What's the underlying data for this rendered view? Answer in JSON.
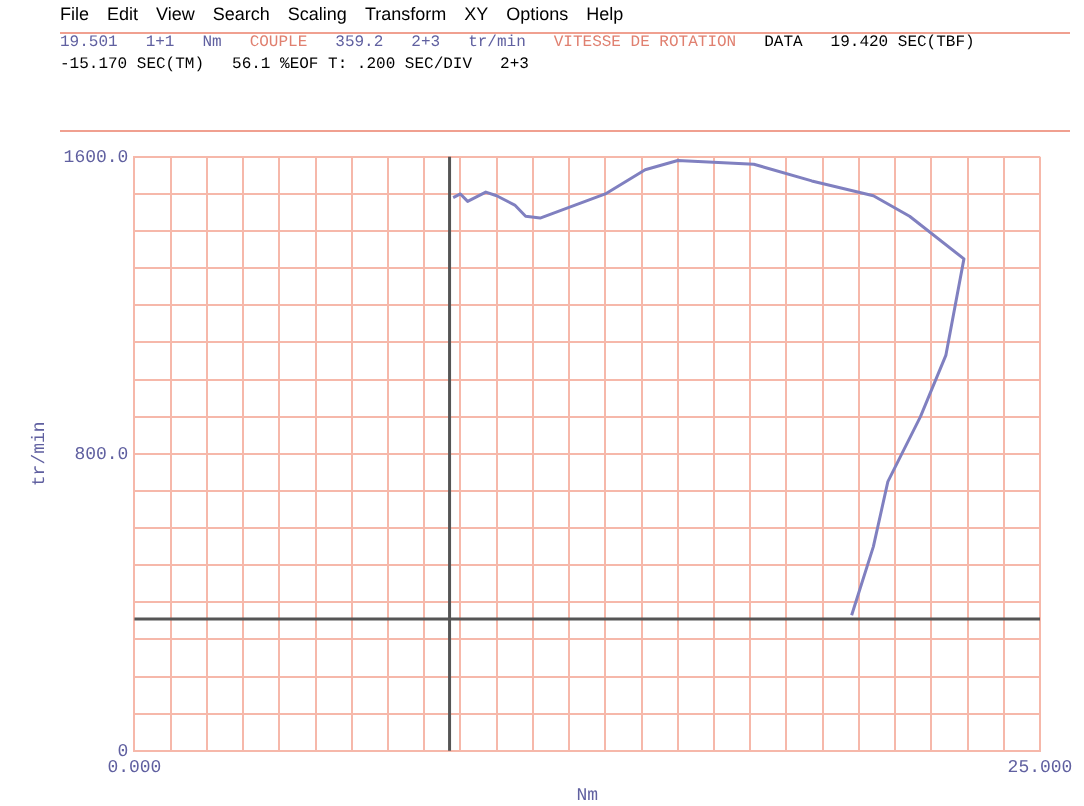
{
  "chart_data": {
    "type": "line",
    "ylabel": "tr/min",
    "xlabel": "Nm",
    "annotations": [
      "File",
      "Edit",
      "View",
      "Search",
      "Scaling",
      "Transform",
      "XY",
      "Options",
      "Help",
      "19.501",
      "1+1",
      "Nm",
      "COUPLE",
      "359.2",
      "2+3",
      "tr/min",
      "VITESSE DE ROTATION",
      "DATA",
      "19.420 SEC(TBF)",
      "-15.170 SEC(TM)",
      "56.1 %EOF T: .200 SEC/DIV",
      "2+3"
    ],
    "series": [
      {
        "color": "#8080c0",
        "x": [
          8.8,
          9.0,
          9.2,
          9.7,
          10.0,
          10.5,
          10.8,
          11.2,
          13.0,
          14.1,
          15.0,
          17.1,
          18.7,
          20.4,
          21.4,
          22.9,
          22.4,
          21.7,
          20.8,
          20.4,
          19.8
        ],
        "values": [
          1490,
          1500,
          1480,
          1505,
          1495,
          1470,
          1440,
          1435,
          1500,
          1565,
          1590,
          1580,
          1535,
          1495,
          1440,
          1325,
          1065,
          900,
          725,
          550,
          365
        ]
      }
    ],
    "xlim": [
      0,
      25
    ],
    "ylim": [
      0,
      1600
    ],
    "xticks": [
      {
        "value": 0,
        "label": "0.000"
      },
      {
        "value": 1,
        "label": null
      },
      {
        "value": 2,
        "label": null
      },
      {
        "value": 3,
        "label": null
      },
      {
        "value": 4,
        "label": null
      },
      {
        "value": 5,
        "label": null
      },
      {
        "value": 6,
        "label": null
      },
      {
        "value": 7,
        "label": null
      },
      {
        "value": 8,
        "label": null
      },
      {
        "value": 9,
        "label": null
      },
      {
        "value": 10,
        "label": null
      },
      {
        "value": 11,
        "label": null
      },
      {
        "value": 12,
        "label": null
      },
      {
        "value": 13,
        "label": null
      },
      {
        "value": 14,
        "label": null
      },
      {
        "value": 15,
        "label": null
      },
      {
        "value": 16,
        "label": null
      },
      {
        "value": 17,
        "label": null
      },
      {
        "value": 18,
        "label": null
      },
      {
        "value": 19,
        "label": null
      },
      {
        "value": 20,
        "label": null
      },
      {
        "value": 21,
        "label": null
      },
      {
        "value": 22,
        "label": null
      },
      {
        "value": 23,
        "label": null
      },
      {
        "value": 24,
        "label": null
      },
      {
        "value": 25,
        "label": "25.000"
      }
    ],
    "yticks": [
      0,
      {
        "value": 100,
        "label": null
      },
      {
        "value": 200,
        "label": null
      },
      {
        "value": 300,
        "label": null
      },
      {
        "value": 400,
        "label": null
      },
      {
        "value": 500,
        "label": null
      },
      {
        "value": 600,
        "label": null
      },
      {
        "value": 700,
        "label": null
      },
      {
        "value": 800,
        "label": "800.0"
      },
      {
        "value": 900,
        "label": null
      },
      {
        "value": 1000,
        "label": null
      },
      {
        "value": 1100,
        "label": null
      },
      {
        "value": 1200,
        "label": null
      },
      {
        "value": 1300,
        "label": null
      },
      {
        "value": 1400,
        "label": null
      },
      {
        "value": 1500,
        "label": null
      },
      {
        "value": 1600,
        "label": "1600.0"
      }
    ],
    "ref_lines": [
      {
        "axis": "x",
        "value": 8.7,
        "color": "#555555"
      },
      {
        "axis": "y",
        "value": 355,
        "color": "#555555"
      }
    ],
    "grid": true,
    "legend": false,
    "marker": "none",
    "line_style": "solid"
  }
}
